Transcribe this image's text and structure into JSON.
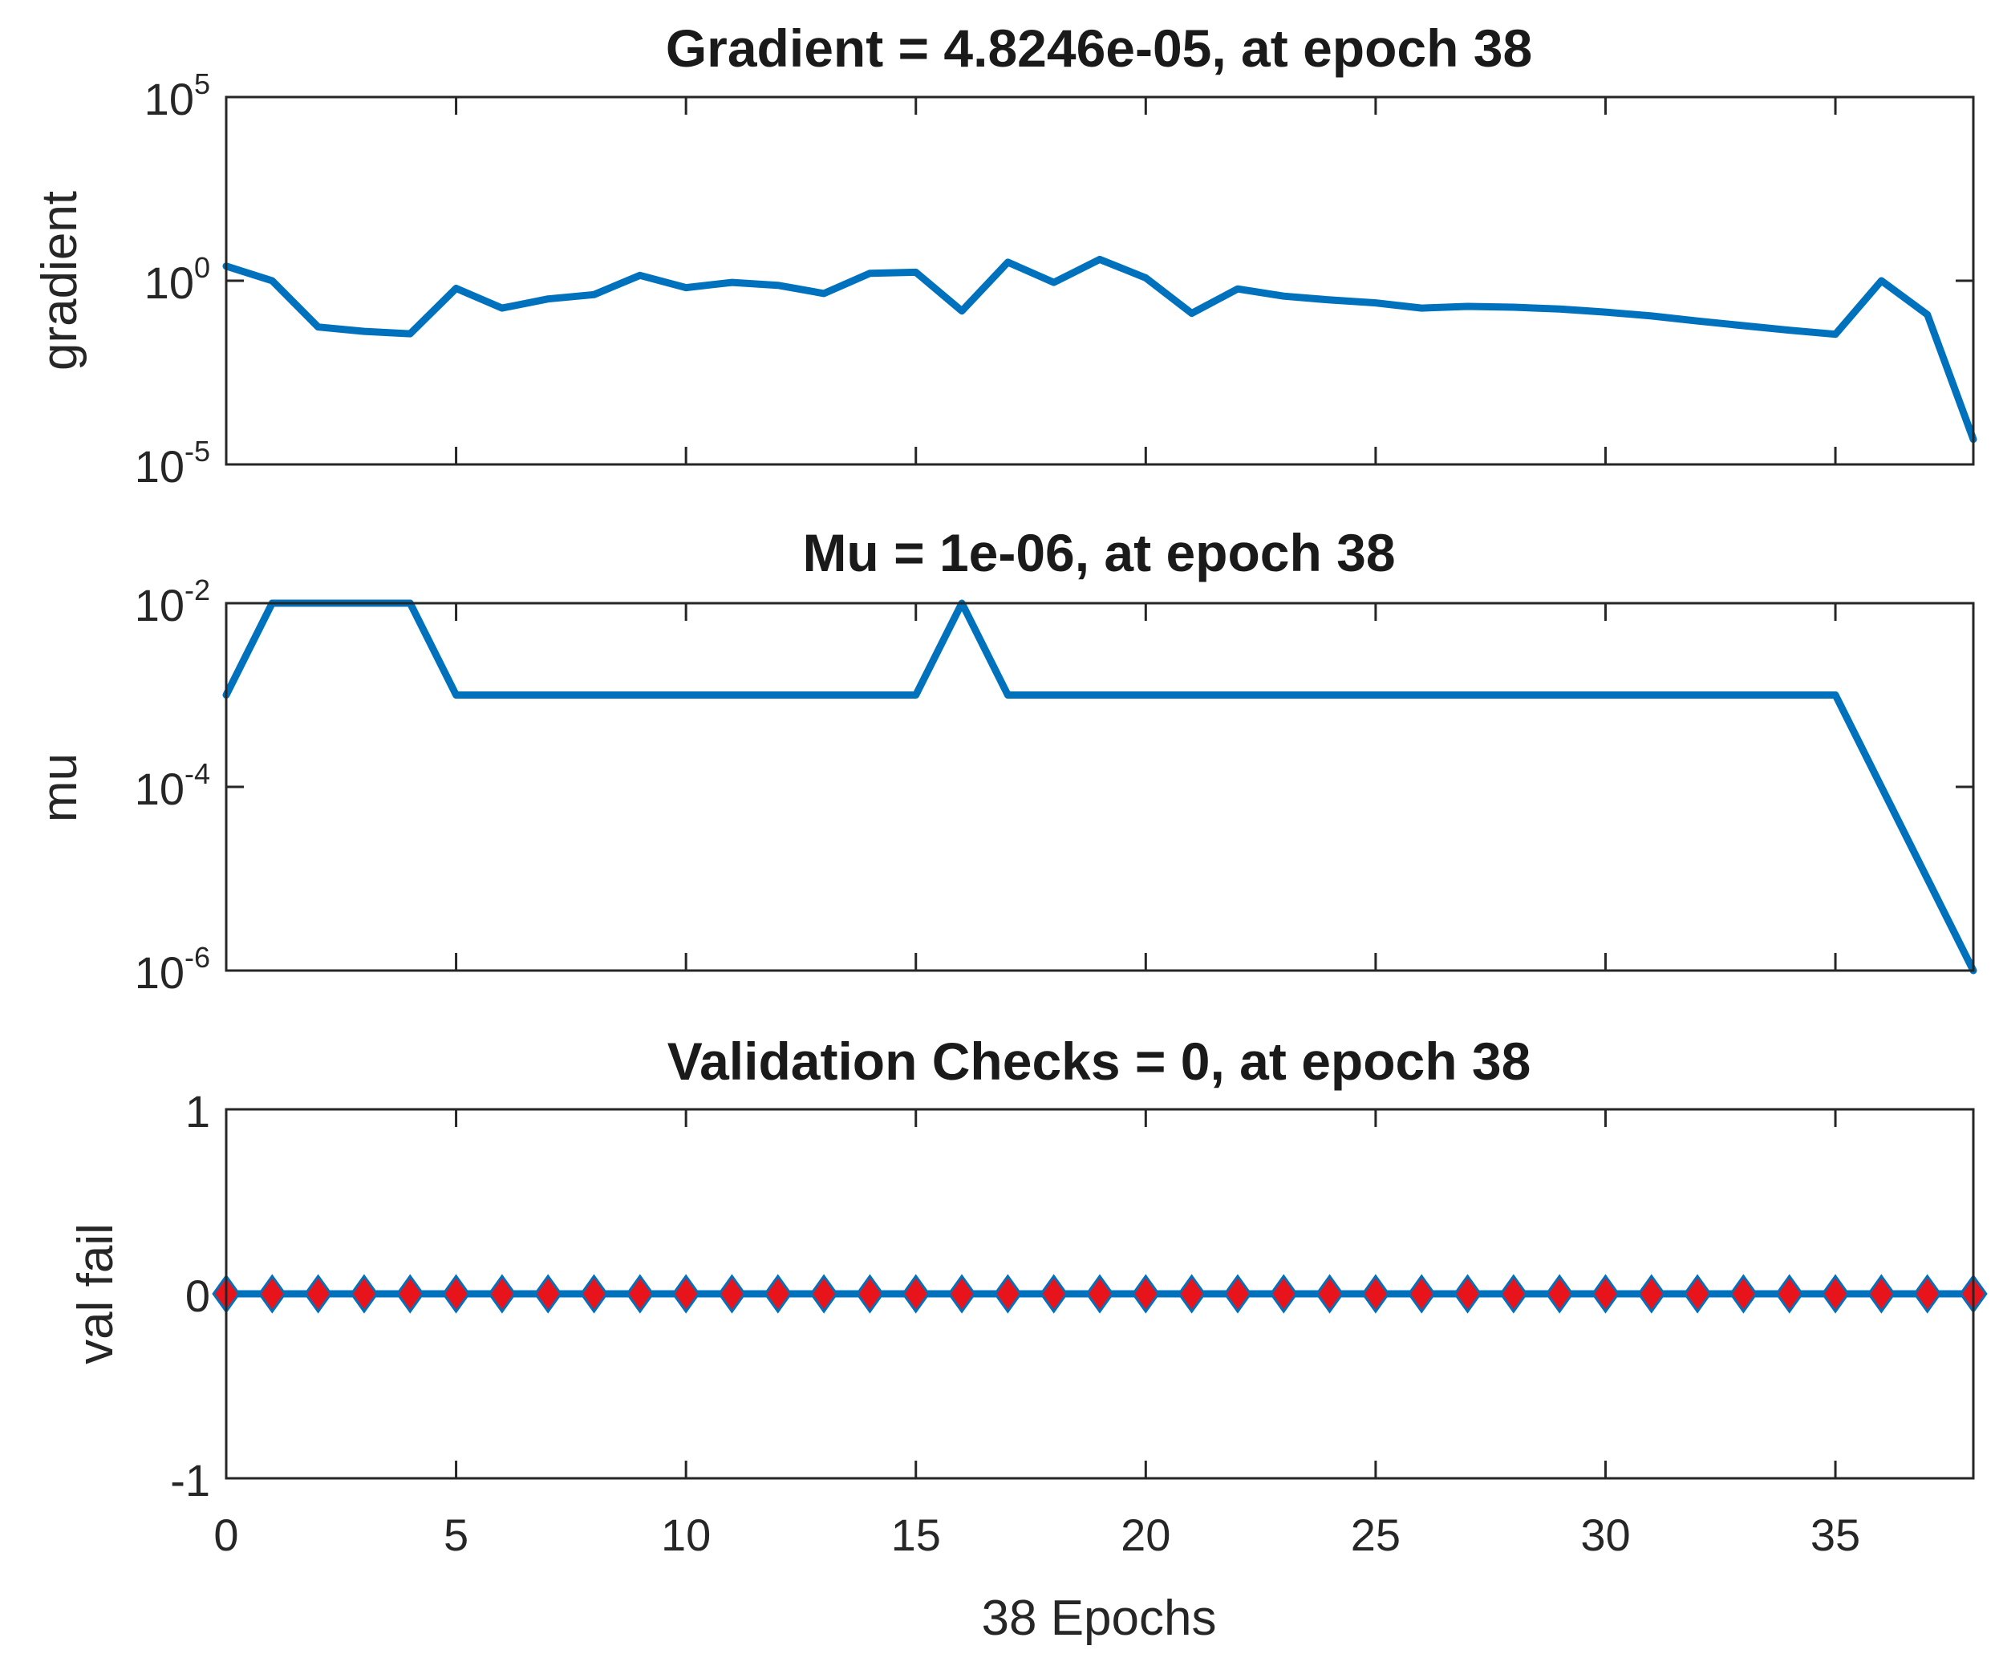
{
  "chart_data": [
    {
      "type": "line",
      "title": "Gradient = 4.8246e-05, at epoch 38",
      "ylabel": "gradient",
      "xlabel": "",
      "yscale": "log",
      "ylim": [
        1e-05,
        100000.0
      ],
      "xlim": [
        0,
        38
      ],
      "yticks": [
        {
          "base": "10",
          "exp": "-5",
          "value": 1e-05
        },
        {
          "base": "10",
          "exp": "0",
          "value": 1
        },
        {
          "base": "10",
          "exp": "5",
          "value": 100000.0
        }
      ],
      "xticks": [
        0,
        5,
        10,
        15,
        20,
        25,
        30,
        35
      ],
      "show_xtick_labels": false,
      "color": "#0072bd",
      "x": [
        0,
        1,
        2,
        3,
        4,
        5,
        6,
        7,
        8,
        9,
        10,
        11,
        12,
        13,
        14,
        15,
        16,
        17,
        18,
        19,
        20,
        21,
        22,
        23,
        24,
        25,
        26,
        27,
        28,
        29,
        30,
        31,
        32,
        33,
        34,
        35,
        36,
        37,
        38
      ],
      "y": [
        2.5,
        1.0,
        0.055,
        0.042,
        0.036,
        0.62,
        0.18,
        0.32,
        0.42,
        1.4,
        0.65,
        0.9,
        0.75,
        0.45,
        1.6,
        1.7,
        0.15,
        3.2,
        0.9,
        3.8,
        1.2,
        0.13,
        0.6,
        0.38,
        0.3,
        0.25,
        0.18,
        0.2,
        0.19,
        0.17,
        0.14,
        0.11,
        0.08,
        0.06,
        0.045,
        0.035,
        1.0,
        0.12,
        4.8246e-05
      ]
    },
    {
      "type": "line",
      "title": "Mu = 1e-06, at epoch 38",
      "ylabel": "mu",
      "xlabel": "",
      "yscale": "log",
      "ylim": [
        1e-06,
        0.01
      ],
      "xlim": [
        0,
        38
      ],
      "yticks": [
        {
          "base": "10",
          "exp": "-6",
          "value": 1e-06
        },
        {
          "base": "10",
          "exp": "-4",
          "value": 0.0001
        },
        {
          "base": "10",
          "exp": "-2",
          "value": 0.01
        }
      ],
      "xticks": [
        0,
        5,
        10,
        15,
        20,
        25,
        30,
        35
      ],
      "show_xtick_labels": false,
      "color": "#0072bd",
      "x": [
        0,
        1,
        2,
        3,
        4,
        5,
        6,
        7,
        8,
        9,
        10,
        11,
        12,
        13,
        14,
        15,
        16,
        17,
        18,
        19,
        20,
        21,
        22,
        23,
        24,
        25,
        26,
        27,
        28,
        29,
        30,
        31,
        32,
        33,
        34,
        35,
        36,
        37,
        38
      ],
      "y": [
        0.001,
        0.01,
        0.01,
        0.01,
        0.01,
        0.001,
        0.001,
        0.001,
        0.001,
        0.001,
        0.001,
        0.001,
        0.001,
        0.001,
        0.001,
        0.001,
        0.01,
        0.001,
        0.001,
        0.001,
        0.001,
        0.001,
        0.001,
        0.001,
        0.001,
        0.001,
        0.001,
        0.001,
        0.001,
        0.001,
        0.001,
        0.001,
        0.001,
        0.001,
        0.001,
        0.001,
        0.0001,
        1e-05,
        1e-06
      ]
    },
    {
      "type": "scatter",
      "title": "Validation Checks = 0, at epoch 38",
      "ylabel": "val fail",
      "xlabel": "38 Epochs",
      "yscale": "linear",
      "ylim": [
        -1,
        1
      ],
      "xlim": [
        0,
        38
      ],
      "yticks": [
        {
          "label": "-1",
          "value": -1
        },
        {
          "label": "0",
          "value": 0
        },
        {
          "label": "1",
          "value": 1
        }
      ],
      "xticks": [
        0,
        5,
        10,
        15,
        20,
        25,
        30,
        35
      ],
      "show_xtick_labels": true,
      "marker_color": "#e8141c",
      "line_color": "#0072bd",
      "marker": "diamond",
      "x": [
        0,
        1,
        2,
        3,
        4,
        5,
        6,
        7,
        8,
        9,
        10,
        11,
        12,
        13,
        14,
        15,
        16,
        17,
        18,
        19,
        20,
        21,
        22,
        23,
        24,
        25,
        26,
        27,
        28,
        29,
        30,
        31,
        32,
        33,
        34,
        35,
        36,
        37,
        38
      ],
      "y": [
        0,
        0,
        0,
        0,
        0,
        0,
        0,
        0,
        0,
        0,
        0,
        0,
        0,
        0,
        0,
        0,
        0,
        0,
        0,
        0,
        0,
        0,
        0,
        0,
        0,
        0,
        0,
        0,
        0,
        0,
        0,
        0,
        0,
        0,
        0,
        0,
        0,
        0,
        0
      ]
    }
  ]
}
